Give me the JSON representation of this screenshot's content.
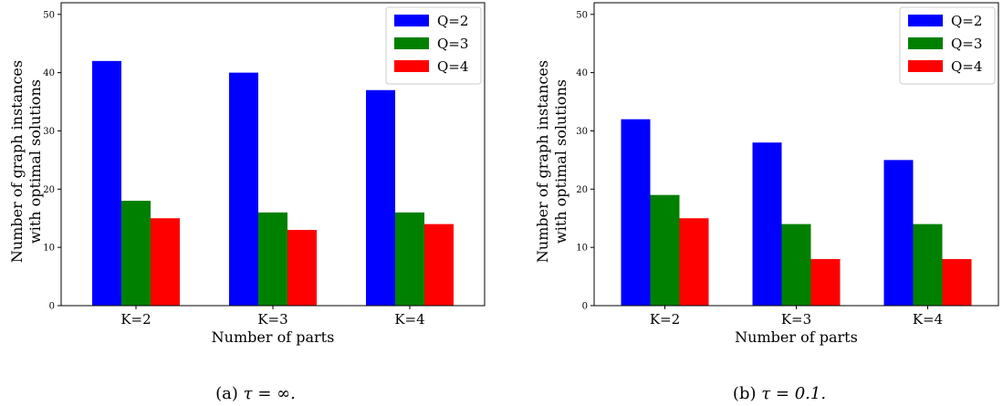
{
  "chart_data": [
    {
      "type": "bar",
      "categories": [
        "K=2",
        "K=3",
        "K=4"
      ],
      "series": [
        {
          "name": "Q=2",
          "values": [
            42,
            40,
            37
          ],
          "color": "#0000ff"
        },
        {
          "name": "Q=3",
          "values": [
            18,
            16,
            16
          ],
          "color": "#008000"
        },
        {
          "name": "Q=4",
          "values": [
            15,
            13,
            14
          ],
          "color": "#ff0000"
        }
      ],
      "xlabel": "Number of parts",
      "ylabel": [
        "Number of graph instances",
        "with optimal solutions"
      ],
      "ylim": [
        0,
        52
      ],
      "yticks": [
        0,
        10,
        20,
        30,
        40,
        50
      ],
      "legend": "top-right",
      "grid": false,
      "caption_prefix": "(a)",
      "caption_math": "τ = ∞."
    },
    {
      "type": "bar",
      "categories": [
        "K=2",
        "K=3",
        "K=4"
      ],
      "series": [
        {
          "name": "Q=2",
          "values": [
            32,
            28,
            25
          ],
          "color": "#0000ff"
        },
        {
          "name": "Q=3",
          "values": [
            19,
            14,
            14
          ],
          "color": "#008000"
        },
        {
          "name": "Q=4",
          "values": [
            15,
            8,
            8
          ],
          "color": "#ff0000"
        }
      ],
      "xlabel": "Number of parts",
      "ylabel": [
        "Number of graph instances",
        "with optimal solutions"
      ],
      "ylim": [
        0,
        52
      ],
      "yticks": [
        0,
        10,
        20,
        30,
        40,
        50
      ],
      "legend": "top-right",
      "grid": false,
      "caption_prefix": "(b)",
      "caption_math": "τ = 0.1."
    }
  ]
}
